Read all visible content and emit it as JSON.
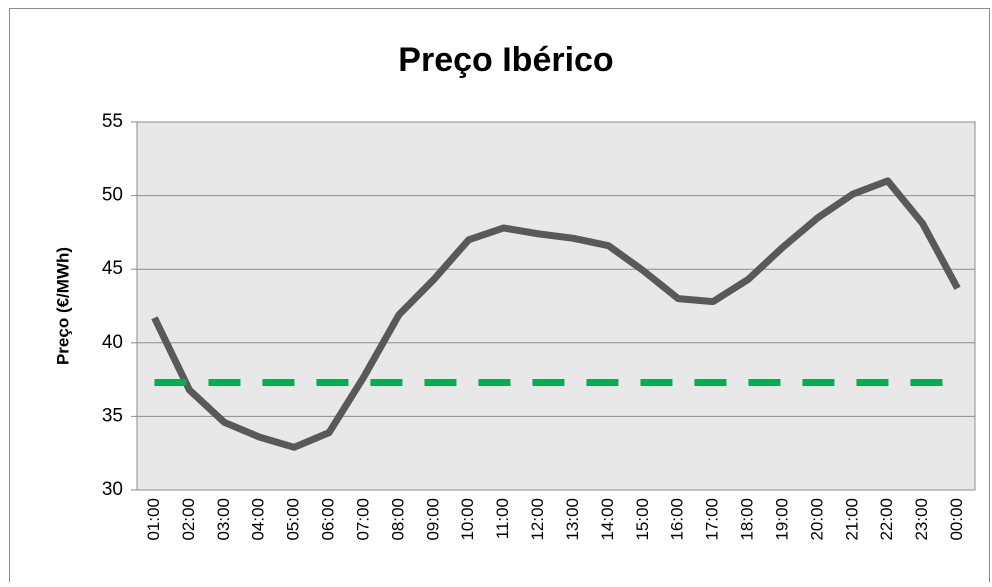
{
  "chart_data": {
    "type": "line",
    "title": "Preço Ibérico",
    "y_label": "Preço (€/MWh)",
    "categories": [
      "01:00",
      "02:00",
      "03:00",
      "04:00",
      "05:00",
      "06:00",
      "07:00",
      "08:00",
      "09:00",
      "10:00",
      "11:00",
      "12:00",
      "13:00",
      "14:00",
      "15:00",
      "16:00",
      "17:00",
      "18:00",
      "19:00",
      "20:00",
      "21:00",
      "22:00",
      "23:00",
      "00:00"
    ],
    "series": [
      {
        "color": "#595959",
        "dashed": false,
        "values": [
          41.7,
          36.8,
          34.6,
          33.6,
          32.9,
          33.9,
          37.7,
          41.9,
          44.3,
          47.0,
          47.8,
          47.4,
          47.1,
          46.6,
          44.9,
          43.0,
          42.8,
          44.3,
          46.5,
          48.5,
          50.1,
          51.0,
          48.1,
          43.7
        ]
      },
      {
        "color": "#00b050",
        "dashed": true,
        "values": [
          37.3,
          37.3,
          37.3,
          37.3,
          37.3,
          37.3,
          37.3,
          37.3,
          37.3,
          37.3,
          37.3,
          37.3,
          37.3,
          37.3,
          37.3,
          37.3,
          37.3,
          37.3,
          37.3,
          37.3,
          37.3,
          37.3,
          37.3,
          37.3
        ]
      }
    ],
    "ylim": [
      30,
      55
    ],
    "yticks": [
      30,
      35,
      40,
      45,
      50,
      55
    ],
    "grid": true,
    "plot_background": "#e8e8e8"
  }
}
